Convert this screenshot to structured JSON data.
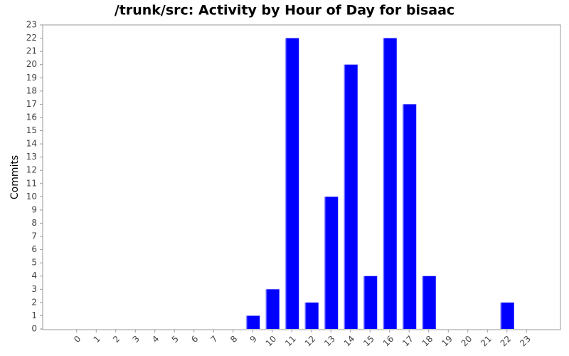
{
  "chart_data": {
    "type": "bar",
    "title": "/trunk/src: Activity by Hour of Day for bisaac",
    "y_label": "Commits",
    "categories": [
      "0",
      "1",
      "2",
      "3",
      "4",
      "5",
      "6",
      "7",
      "8",
      "9",
      "10",
      "11",
      "12",
      "13",
      "14",
      "15",
      "16",
      "17",
      "18",
      "19",
      "20",
      "21",
      "22",
      "23"
    ],
    "values": [
      0,
      0,
      0,
      0,
      0,
      0,
      0,
      0,
      0,
      1,
      3,
      22,
      2,
      10,
      20,
      4,
      22,
      17,
      4,
      0,
      0,
      0,
      2,
      0
    ],
    "color": "#0000ff",
    "ylim": [
      0,
      23
    ],
    "yticks": [
      0,
      1,
      2,
      3,
      4,
      5,
      6,
      7,
      8,
      9,
      10,
      11,
      12,
      13,
      14,
      15,
      16,
      17,
      18,
      19,
      20,
      21,
      22,
      23
    ],
    "grid": false
  }
}
